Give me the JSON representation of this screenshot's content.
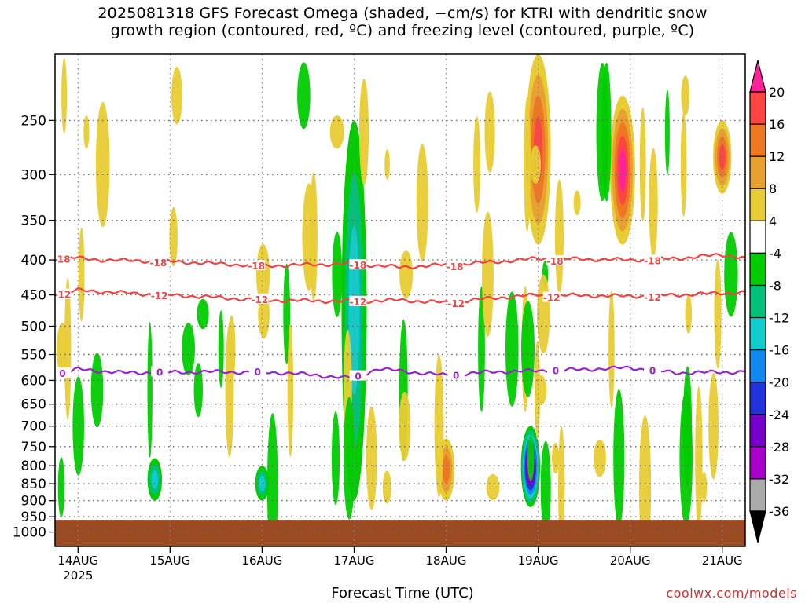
{
  "title_line1": "2025081318 GFS Forecast Omega (shaded, −cm/s) for KTRI with dendritic snow",
  "title_line2": "growth region (contoured, red, ºC) and freezing level (contoured, purple, ºC)",
  "credit": "coolwx.com/models",
  "colors": {
    "ground": "#9c4a22",
    "dgz_contour": "#ee4444",
    "freezing_contour": "#9922cc",
    "grid": "#666666"
  },
  "chart_data": {
    "type": "heatmap",
    "title": "2025081318 GFS Forecast Omega for KTRI",
    "xlabel": "Forecast Time (UTC)",
    "ylabel": "",
    "x_range": [
      "2025-08-13 18Z",
      "2025-08-21 06Z"
    ],
    "x_ticks": [
      {
        "date": "2025-08-14 00Z",
        "label": "14AUG",
        "sublabel": "2025"
      },
      {
        "date": "2025-08-15 00Z",
        "label": "15AUG"
      },
      {
        "date": "2025-08-16 00Z",
        "label": "16AUG"
      },
      {
        "date": "2025-08-17 00Z",
        "label": "17AUG"
      },
      {
        "date": "2025-08-18 00Z",
        "label": "18AUG"
      },
      {
        "date": "2025-08-19 00Z",
        "label": "19AUG"
      },
      {
        "date": "2025-08-20 00Z",
        "label": "20AUG"
      },
      {
        "date": "2025-08-21 00Z",
        "label": "21AUG"
      }
    ],
    "y_axis": "pressure (hPa), log scale, inverted",
    "y_range": [
      1050,
      200
    ],
    "y_ticks": [
      250,
      300,
      350,
      400,
      450,
      500,
      550,
      600,
      650,
      700,
      750,
      800,
      850,
      900,
      950,
      1000
    ],
    "colorbar": {
      "labels": [
        "20",
        "16",
        "12",
        "8",
        "4",
        "-4",
        "-8",
        "-12",
        "-16",
        "-20",
        "-24",
        "-28",
        "-32",
        "-36"
      ],
      "colors": [
        "#ff2299",
        "#ff4444",
        "#ee7722",
        "#e8a030",
        "#e8cc33",
        "#ffffff",
        "#00cc00",
        "#00c07a",
        "#11cccc",
        "#1188ee",
        "#2233dd",
        "#7700cc",
        "#aa00cc",
        "#aaaaaa",
        "#000000"
      ]
    },
    "contours": [
      {
        "name": "-18",
        "color": "#ee4444",
        "label_text": "-18",
        "points": [
          [
            "2025-08-13 18Z",
            395
          ],
          [
            "2025-08-14 06Z",
            400
          ],
          [
            "2025-08-15 00Z",
            402
          ],
          [
            "2025-08-16 00Z",
            408
          ],
          [
            "2025-08-17 00Z",
            405
          ],
          [
            "2025-08-17 12Z",
            410
          ],
          [
            "2025-08-18 12Z",
            403
          ],
          [
            "2025-08-19 00Z",
            398
          ],
          [
            "2025-08-20 00Z",
            400
          ],
          [
            "2025-08-20 12Z",
            398
          ],
          [
            "2025-08-21 00Z",
            393
          ],
          [
            "2025-08-21 06Z",
            397
          ]
        ]
      },
      {
        "name": "-12",
        "color": "#ee4444",
        "label_text": "-12",
        "points": [
          [
            "2025-08-13 18Z",
            450
          ],
          [
            "2025-08-14 00Z",
            443
          ],
          [
            "2025-08-14 12Z",
            447
          ],
          [
            "2025-08-15 06Z",
            452
          ],
          [
            "2025-08-16 00Z",
            458
          ],
          [
            "2025-08-17 00Z",
            460
          ],
          [
            "2025-08-17 12Z",
            458
          ],
          [
            "2025-08-18 00Z",
            462
          ],
          [
            "2025-08-18 12Z",
            455
          ],
          [
            "2025-08-19 00Z",
            450
          ],
          [
            "2025-08-20 00Z",
            452
          ],
          [
            "2025-08-20 12Z",
            450
          ],
          [
            "2025-08-21 06Z",
            446
          ]
        ]
      },
      {
        "name": "0",
        "color": "#9922cc",
        "label_text": "0",
        "points": [
          [
            "2025-08-13 18Z",
            590
          ],
          [
            "2025-08-14 00Z",
            578
          ],
          [
            "2025-08-14 12Z",
            585
          ],
          [
            "2025-08-15 12Z",
            583
          ],
          [
            "2025-08-16 06Z",
            585
          ],
          [
            "2025-08-17 00Z",
            596
          ],
          [
            "2025-08-17 06Z",
            577
          ],
          [
            "2025-08-18 00Z",
            590
          ],
          [
            "2025-08-18 12Z",
            583
          ],
          [
            "2025-08-19 06Z",
            580
          ],
          [
            "2025-08-20 00Z",
            575
          ],
          [
            "2025-08-20 12Z",
            585
          ],
          [
            "2025-08-21 06Z",
            583
          ]
        ]
      }
    ],
    "omega_features": [
      {
        "time": "2025-08-18 22Z",
        "p_top": 700,
        "p_bottom": 920,
        "peak": -36
      },
      {
        "time": "2025-08-19 00Z",
        "p_top": 200,
        "p_bottom": 380,
        "peak": 16
      },
      {
        "time": "2025-08-19 22Z",
        "p_top": 230,
        "p_bottom": 380,
        "peak": 20
      },
      {
        "time": "2025-08-21 00Z",
        "p_top": 250,
        "p_bottom": 320,
        "peak": 16
      },
      {
        "time": "2025-08-17 00Z",
        "p_top": 250,
        "p_bottom": 900,
        "peak": -12
      },
      {
        "time": "2025-08-14 20Z",
        "p_top": 780,
        "p_bottom": 900,
        "peak": -12
      },
      {
        "time": "2025-08-16 00Z",
        "p_top": 800,
        "p_bottom": 900,
        "peak": -12
      },
      {
        "time": "2025-08-18 00Z",
        "p_top": 730,
        "p_bottom": 900,
        "peak": 12
      }
    ]
  }
}
